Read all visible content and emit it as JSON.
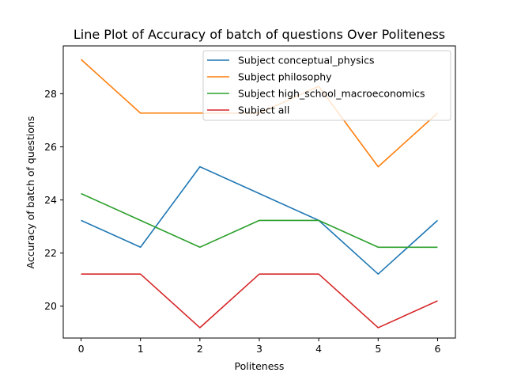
{
  "chart_data": {
    "type": "line",
    "title": "Line Plot of Accuracy of batch of questions Over Politeness",
    "xlabel": "Politeness",
    "ylabel": "Accuracy of batch of questions",
    "x": [
      0,
      1,
      2,
      3,
      4,
      5,
      6
    ],
    "xticks": [
      0,
      1,
      2,
      3,
      4,
      5,
      6
    ],
    "yticks": [
      20,
      22,
      24,
      26,
      28
    ],
    "xlim": [
      -0.3,
      6.3
    ],
    "ylim": [
      18.8,
      29.8
    ],
    "grid": false,
    "legend_position": "upper-right",
    "series": [
      {
        "name": "Subject conceptual_physics",
        "color": "#1f77b4",
        "values": [
          23.23,
          22.22,
          25.25,
          24.24,
          23.23,
          21.21,
          23.23
        ]
      },
      {
        "name": "Subject philosophy",
        "color": "#ff7f0e",
        "values": [
          29.29,
          27.27,
          27.27,
          27.27,
          28.28,
          25.25,
          27.27
        ]
      },
      {
        "name": "Subject high_school_macroeconomics",
        "color": "#2ca02c",
        "values": [
          24.24,
          23.23,
          22.22,
          23.23,
          23.23,
          22.22,
          22.22
        ]
      },
      {
        "name": "Subject all",
        "color": "#d62728",
        "values": [
          21.21,
          21.21,
          19.19,
          21.21,
          21.21,
          19.19,
          20.2
        ]
      }
    ]
  }
}
